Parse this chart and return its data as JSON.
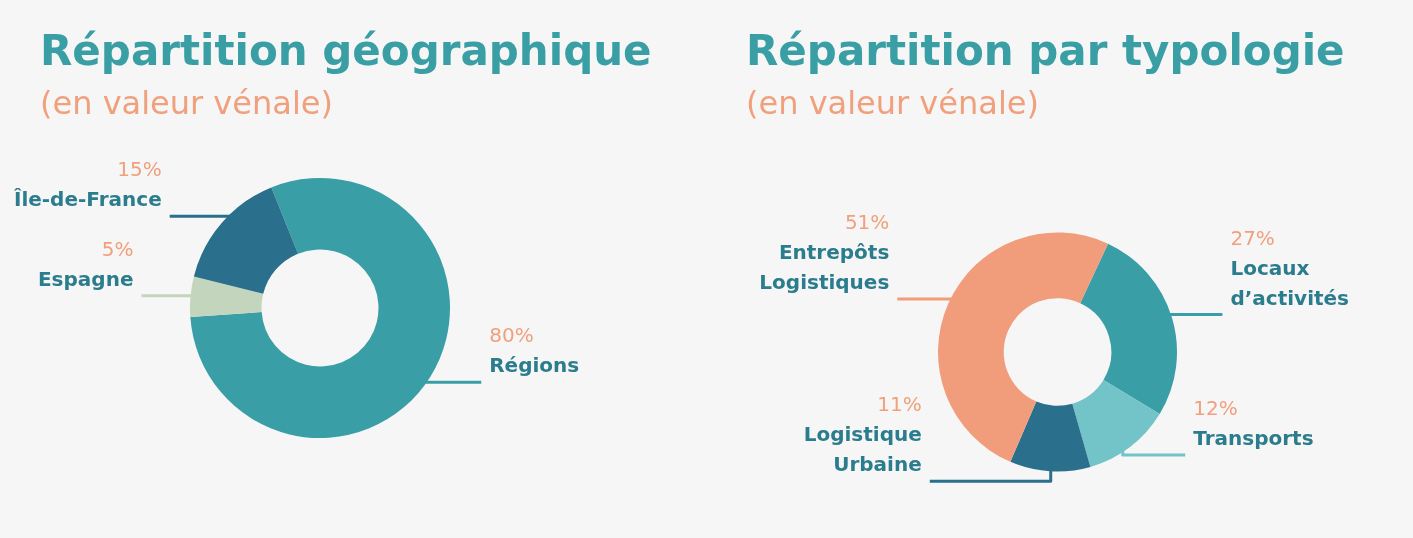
{
  "chart_data": [
    {
      "type": "donut",
      "title": "Répartition géographique",
      "subtitle": "(en valeur vénale)",
      "categories": [
        "Régions",
        "Espagne",
        "Île-de-France"
      ],
      "values": [
        80,
        5,
        15
      ],
      "colors": [
        "#3a9ea6",
        "#c3d5bd",
        "#2a6f8c"
      ],
      "value_labels": [
        "80%",
        "5%",
        "15%"
      ],
      "legend": false
    },
    {
      "type": "donut",
      "title": "Répartition par typologie",
      "subtitle": "(en valeur vénale)",
      "categories": [
        "Locaux d’activités",
        "Transports",
        "Logistique Urbaine",
        "Entrepôts Logistiques"
      ],
      "values": [
        27,
        12,
        11,
        51
      ],
      "colors": [
        "#3a9ea6",
        "#72c4c8",
        "#2a6f8c",
        "#f19c7a"
      ],
      "value_labels": [
        "27%",
        "12%",
        "11%",
        "51%"
      ],
      "legend": false
    }
  ]
}
